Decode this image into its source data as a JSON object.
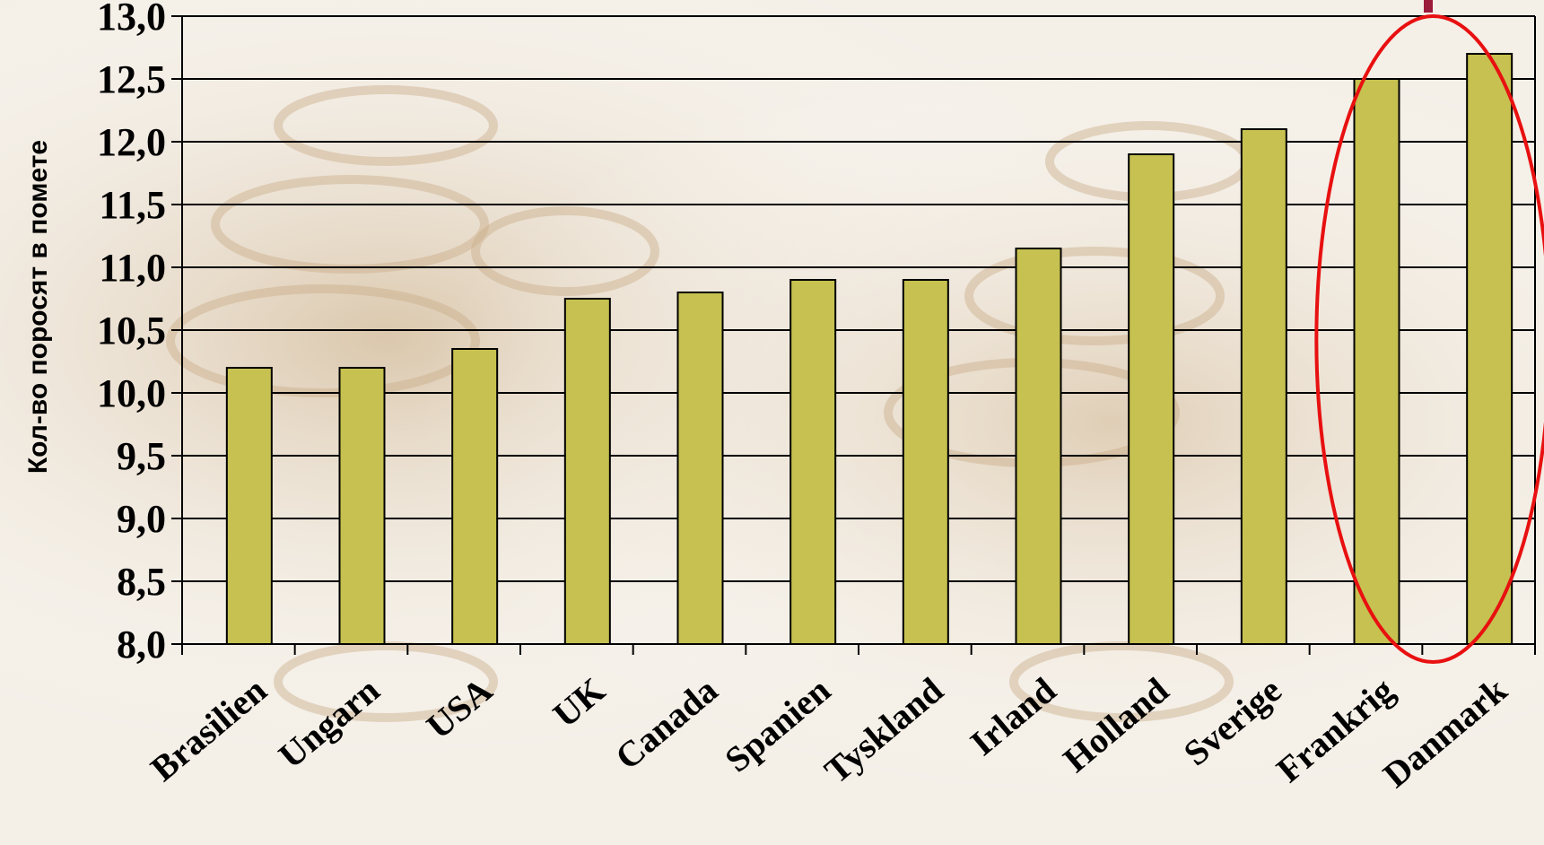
{
  "chart_data": {
    "type": "bar",
    "title": "",
    "xlabel": "",
    "ylabel": "Кол-во поросят в помете",
    "categories": [
      "Brasilien",
      "Ungarn",
      "USA",
      "UK",
      "Canada",
      "Spanien",
      "Tyskland",
      "Irland",
      "Holland",
      "Sverige",
      "Frankrig",
      "Danmark"
    ],
    "values": [
      10.2,
      10.2,
      10.35,
      10.75,
      10.8,
      10.9,
      10.9,
      11.15,
      11.9,
      12.1,
      12.5,
      12.7
    ],
    "ylim": [
      8.0,
      13.0
    ],
    "yticks": [
      "8,0",
      "8,5",
      "9,0",
      "9,5",
      "10,0",
      "10,5",
      "11,0",
      "11,5",
      "12,0",
      "12,5",
      "13,0"
    ],
    "grid": true,
    "bar_color": "#c6c150",
    "highlight": {
      "categories": [
        "Frankrig",
        "Danmark"
      ],
      "color": "#e81010",
      "shape": "ellipse"
    }
  },
  "colors": {
    "background_tint": "#e9ddcc",
    "grid": "#000000"
  }
}
